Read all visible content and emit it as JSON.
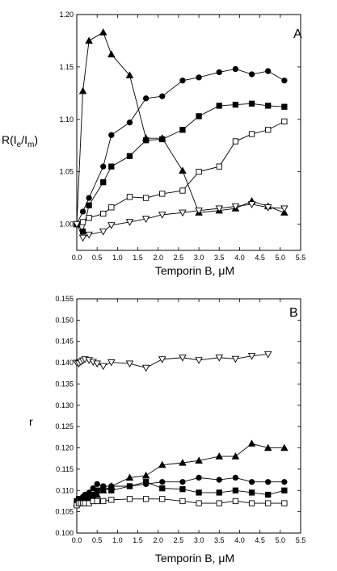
{
  "chart_data": [
    {
      "type": "line",
      "panel_label": "A",
      "xlabel": "Temporin B, μM",
      "ylabel_main": "R(I",
      "ylabel_sub1": "e",
      "ylabel_mid": "/I",
      "ylabel_sub2": "m",
      "ylabel_end": ")",
      "xlim": [
        0,
        5.5
      ],
      "ylim": [
        0.975,
        1.2
      ],
      "xticks": [
        0,
        0.5,
        1,
        1.5,
        2,
        2.5,
        3,
        3.5,
        4,
        4.5,
        5,
        5.5
      ],
      "xtick_labels": [
        "0.0",
        "0.5",
        "1.0",
        "1.5",
        "2.0",
        "2.5",
        "3.0",
        "3.5",
        "4.0",
        "4.5",
        "5.0",
        "5.5"
      ],
      "yticks": [
        1.0,
        1.05,
        1.1,
        1.15,
        1.2
      ],
      "ytick_labels": [
        "1.00",
        "1.05",
        "1.10",
        "1.15",
        "1.20"
      ],
      "grid": false,
      "series": [
        {
          "marker": "circle-filled",
          "x": [
            0,
            0.15,
            0.3,
            0.65,
            0.85,
            1.3,
            1.7,
            2.1,
            2.6,
            3.0,
            3.5,
            3.9,
            4.3,
            4.7,
            5.1
          ],
          "y": [
            1.0,
            1.012,
            1.025,
            1.055,
            1.085,
            1.097,
            1.12,
            1.122,
            1.137,
            1.14,
            1.145,
            1.148,
            1.143,
            1.146,
            1.137
          ]
        },
        {
          "marker": "square-filled",
          "x": [
            0,
            0.15,
            0.3,
            0.65,
            0.85,
            1.3,
            1.7,
            2.1,
            2.6,
            3.0,
            3.5,
            3.9,
            4.3,
            4.7,
            5.1
          ],
          "y": [
            1.0,
            0.993,
            1.018,
            1.04,
            1.055,
            1.065,
            1.08,
            1.081,
            1.09,
            1.103,
            1.113,
            1.114,
            1.115,
            1.113,
            1.112
          ]
        },
        {
          "marker": "square-open",
          "x": [
            0,
            0.15,
            0.3,
            0.65,
            0.85,
            1.3,
            1.7,
            2.1,
            2.6,
            3.0,
            3.5,
            3.9,
            4.3,
            4.7,
            5.1
          ],
          "y": [
            1.0,
            1.002,
            1.006,
            1.01,
            1.016,
            1.026,
            1.025,
            1.029,
            1.032,
            1.05,
            1.055,
            1.079,
            1.086,
            1.09,
            1.098
          ]
        },
        {
          "marker": "triangle-up-filled",
          "x": [
            0,
            0.15,
            0.3,
            0.65,
            0.85,
            1.3,
            1.7,
            2.1,
            2.6,
            3.0,
            3.5,
            3.9,
            4.3,
            4.7,
            5.1
          ],
          "y": [
            1.0,
            1.127,
            1.175,
            1.183,
            1.162,
            1.142,
            1.082,
            1.082,
            1.051,
            1.011,
            1.013,
            1.015,
            1.022,
            1.017,
            1.011
          ]
        },
        {
          "marker": "triangle-down-open",
          "x": [
            0,
            0.15,
            0.3,
            0.65,
            0.85,
            1.3,
            1.7,
            2.1,
            2.6,
            3.0,
            3.5,
            3.9,
            4.3,
            4.7,
            5.1
          ],
          "y": [
            1.0,
            0.987,
            0.99,
            0.993,
            0.999,
            1.002,
            1.005,
            1.009,
            1.011,
            1.013,
            1.015,
            1.017,
            1.019,
            1.016,
            1.015
          ]
        }
      ]
    },
    {
      "type": "line",
      "panel_label": "B",
      "xlabel": "Temporin B, μM",
      "ylabel": "r",
      "xlim": [
        0,
        5.5
      ],
      "ylim": [
        0.1,
        0.155
      ],
      "xticks": [
        0,
        0.5,
        1,
        1.5,
        2,
        2.5,
        3,
        3.5,
        4,
        4.5,
        5,
        5.5
      ],
      "xtick_labels": [
        "0.0",
        "0.5",
        "1.0",
        "1.5",
        "2.0",
        "2.5",
        "3.0",
        "3.5",
        "4.0",
        "4.5",
        "5.0",
        "5.5"
      ],
      "yticks": [
        0.1,
        0.105,
        0.11,
        0.115,
        0.12,
        0.125,
        0.13,
        0.135,
        0.14,
        0.145,
        0.15,
        0.155
      ],
      "ytick_labels": [
        "0.100",
        "0.105",
        "0.110",
        "0.115",
        "0.120",
        "0.125",
        "0.130",
        "0.135",
        "0.140",
        "0.145",
        "0.150",
        "0.155"
      ],
      "grid": false,
      "series": [
        {
          "marker": "triangle-down-open",
          "x": [
            0,
            0.05,
            0.1,
            0.15,
            0.2,
            0.3,
            0.4,
            0.5,
            0.65,
            0.85,
            1.3,
            1.7,
            2.1,
            2.6,
            3.0,
            3.5,
            3.9,
            4.3,
            4.7
          ],
          "y": [
            0.14,
            0.1398,
            0.1402,
            0.1405,
            0.1408,
            0.1406,
            0.1402,
            0.1398,
            0.1392,
            0.1401,
            0.1398,
            0.1388,
            0.1408,
            0.1412,
            0.1406,
            0.1412,
            0.1409,
            0.1416,
            0.142
          ]
        },
        {
          "marker": "triangle-up-filled",
          "x": [
            0,
            0.05,
            0.1,
            0.15,
            0.2,
            0.3,
            0.4,
            0.5,
            0.65,
            0.85,
            1.3,
            1.7,
            2.1,
            2.6,
            3.0,
            3.5,
            3.9,
            4.3,
            4.7,
            5.1
          ],
          "y": [
            0.107,
            0.107,
            0.1075,
            0.108,
            0.108,
            0.108,
            0.1085,
            0.109,
            0.11,
            0.111,
            0.113,
            0.1135,
            0.116,
            0.1165,
            0.117,
            0.118,
            0.118,
            0.121,
            0.12,
            0.12
          ]
        },
        {
          "marker": "circle-filled",
          "x": [
            0,
            0.05,
            0.1,
            0.15,
            0.2,
            0.3,
            0.4,
            0.5,
            0.65,
            0.85,
            1.3,
            1.7,
            2.1,
            2.6,
            3.0,
            3.5,
            3.9,
            4.3,
            4.7,
            5.1
          ],
          "y": [
            0.107,
            0.1075,
            0.108,
            0.1085,
            0.109,
            0.1095,
            0.1105,
            0.1115,
            0.111,
            0.111,
            0.111,
            0.1115,
            0.112,
            0.112,
            0.113,
            0.1125,
            0.113,
            0.112,
            0.112,
            0.112
          ]
        },
        {
          "marker": "square-filled",
          "x": [
            0,
            0.05,
            0.1,
            0.15,
            0.2,
            0.3,
            0.4,
            0.5,
            0.65,
            0.85,
            1.3,
            1.7,
            2.1,
            2.6,
            3.0,
            3.5,
            3.9,
            4.3,
            4.7,
            5.1
          ],
          "y": [
            0.1075,
            0.108,
            0.108,
            0.108,
            0.1085,
            0.109,
            0.109,
            0.11,
            0.1105,
            0.11,
            0.111,
            0.112,
            0.1105,
            0.1103,
            0.1095,
            0.1095,
            0.11,
            0.1095,
            0.109,
            0.11
          ]
        },
        {
          "marker": "square-open",
          "x": [
            0,
            0.05,
            0.1,
            0.15,
            0.2,
            0.3,
            0.4,
            0.5,
            0.65,
            0.85,
            1.3,
            1.7,
            2.1,
            2.6,
            3.0,
            3.5,
            3.9,
            4.3,
            4.7,
            5.1
          ],
          "y": [
            0.1065,
            0.107,
            0.107,
            0.107,
            0.107,
            0.107,
            0.1075,
            0.1075,
            0.1075,
            0.1078,
            0.108,
            0.108,
            0.108,
            0.1075,
            0.107,
            0.107,
            0.1075,
            0.107,
            0.107,
            0.107
          ]
        }
      ]
    }
  ]
}
